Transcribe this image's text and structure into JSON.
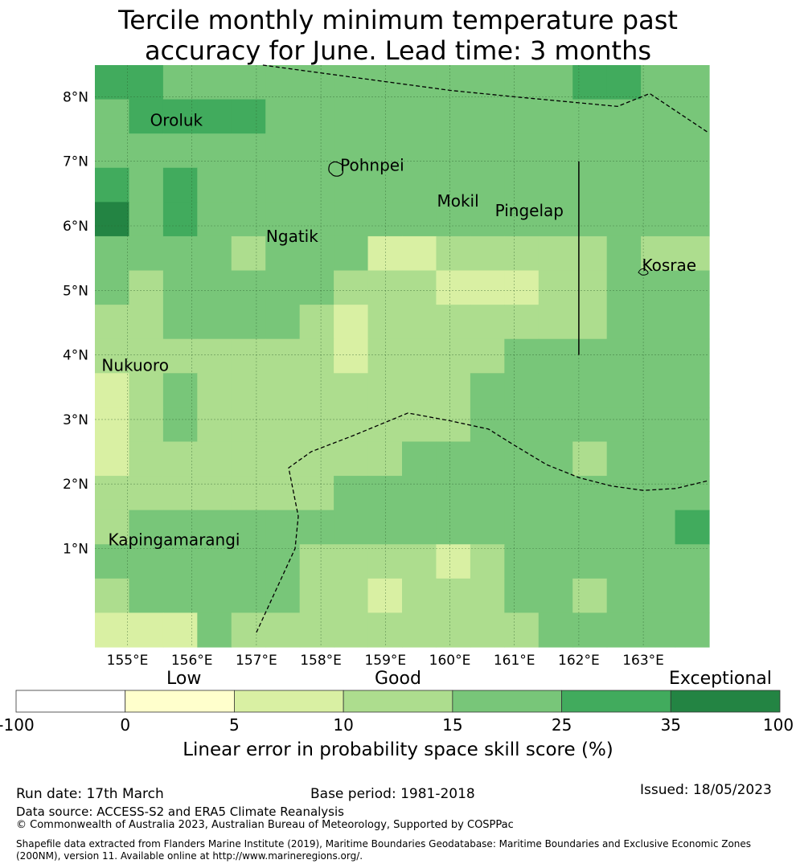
{
  "title_line1": "Tercile monthly minimum temperature past",
  "title_line2": "accuracy for June. Lead time: 3 months",
  "colors": {
    "c_neg": "#ffffff",
    "c0": "#ffffcc",
    "c5": "#d9f0a3",
    "c10": "#addd8e",
    "c15": "#78c679",
    "c25": "#41ab5d",
    "c35": "#238443"
  },
  "chart_data": {
    "type": "heatmap",
    "lon_range": [
      154.5,
      164.0
    ],
    "lat_range": [
      -0.3,
      8.5
    ],
    "cell_lon_size": 0.83,
    "cell_lat_size": 0.55,
    "lon_ticks": [
      "155°E",
      "156°E",
      "157°E",
      "158°E",
      "159°E",
      "160°E",
      "161°E",
      "162°E",
      "163°E"
    ],
    "lon_tick_values": [
      155,
      156,
      157,
      158,
      159,
      160,
      161,
      162,
      163
    ],
    "lat_ticks": [
      "1°N",
      "2°N",
      "3°N",
      "4°N",
      "5°N",
      "6°N",
      "7°N",
      "8°N"
    ],
    "lat_tick_values": [
      1,
      2,
      3,
      4,
      5,
      6,
      7,
      8
    ],
    "grid_rows_top_to_bottom": [
      [
        "c25",
        "c25",
        "c15",
        "c15",
        "c15",
        "c15",
        "c15",
        "c15",
        "c15",
        "c15",
        "c15",
        "c15",
        "c15",
        "c15",
        "c25",
        "c25",
        "c15",
        "c15"
      ],
      [
        "c15",
        "c25",
        "c25",
        "c25",
        "c25",
        "c15",
        "c15",
        "c15",
        "c15",
        "c15",
        "c15",
        "c15",
        "c15",
        "c15",
        "c15",
        "c15",
        "c15",
        "c15"
      ],
      [
        "c15",
        "c15",
        "c15",
        "c15",
        "c15",
        "c15",
        "c15",
        "c15",
        "c15",
        "c15",
        "c15",
        "c15",
        "c15",
        "c15",
        "c15",
        "c15",
        "c15",
        "c15"
      ],
      [
        "c25",
        "c15",
        "c25",
        "c15",
        "c15",
        "c15",
        "c15",
        "c15",
        "c15",
        "c15",
        "c15",
        "c15",
        "c15",
        "c15",
        "c15",
        "c15",
        "c15",
        "c15"
      ],
      [
        "c35",
        "c15",
        "c25",
        "c15",
        "c15",
        "c15",
        "c15",
        "c15",
        "c15",
        "c15",
        "c15",
        "c15",
        "c15",
        "c15",
        "c15",
        "c15",
        "c15",
        "c15"
      ],
      [
        "c15",
        "c15",
        "c15",
        "c15",
        "c10",
        "c15",
        "c15",
        "c15",
        "c5",
        "c5",
        "c10",
        "c10",
        "c10",
        "c10",
        "c10",
        "c15",
        "c10",
        "c10"
      ],
      [
        "c15",
        "c10",
        "c15",
        "c15",
        "c15",
        "c15",
        "c15",
        "c10",
        "c10",
        "c10",
        "c5",
        "c5",
        "c5",
        "c10",
        "c10",
        "c15",
        "c15",
        "c15"
      ],
      [
        "c10",
        "c10",
        "c15",
        "c15",
        "c15",
        "c15",
        "c10",
        "c5",
        "c10",
        "c10",
        "c10",
        "c10",
        "c10",
        "c10",
        "c10",
        "c15",
        "c15",
        "c15"
      ],
      [
        "c10",
        "c10",
        "c10",
        "c10",
        "c10",
        "c10",
        "c10",
        "c5",
        "c10",
        "c10",
        "c10",
        "c10",
        "c15",
        "c15",
        "c15",
        "c15",
        "c15",
        "c15"
      ],
      [
        "c5",
        "c10",
        "c15",
        "c10",
        "c10",
        "c10",
        "c10",
        "c10",
        "c10",
        "c10",
        "c10",
        "c15",
        "c15",
        "c15",
        "c15",
        "c15",
        "c15",
        "c15"
      ],
      [
        "c5",
        "c10",
        "c15",
        "c10",
        "c10",
        "c10",
        "c10",
        "c10",
        "c10",
        "c10",
        "c10",
        "c15",
        "c15",
        "c15",
        "c15",
        "c15",
        "c15",
        "c15"
      ],
      [
        "c5",
        "c10",
        "c10",
        "c10",
        "c10",
        "c10",
        "c10",
        "c10",
        "c10",
        "c15",
        "c15",
        "c15",
        "c15",
        "c15",
        "c10",
        "c15",
        "c15",
        "c15"
      ],
      [
        "c10",
        "c10",
        "c10",
        "c10",
        "c10",
        "c10",
        "c10",
        "c15",
        "c15",
        "c15",
        "c15",
        "c15",
        "c15",
        "c15",
        "c15",
        "c15",
        "c15",
        "c15"
      ],
      [
        "c10",
        "c15",
        "c15",
        "c15",
        "c15",
        "c15",
        "c15",
        "c15",
        "c15",
        "c15",
        "c15",
        "c15",
        "c15",
        "c15",
        "c15",
        "c15",
        "c15",
        "c25"
      ],
      [
        "c15",
        "c15",
        "c15",
        "c15",
        "c15",
        "c15",
        "c10",
        "c10",
        "c10",
        "c10",
        "c5",
        "c10",
        "c15",
        "c15",
        "c15",
        "c15",
        "c15",
        "c15"
      ],
      [
        "c10",
        "c15",
        "c15",
        "c15",
        "c15",
        "c15",
        "c10",
        "c10",
        "c5",
        "c10",
        "c10",
        "c10",
        "c15",
        "c15",
        "c10",
        "c15",
        "c15",
        "c15"
      ],
      [
        "c5",
        "c5",
        "c5",
        "c15",
        "c10",
        "c10",
        "c10",
        "c10",
        "c10",
        "c10",
        "c10",
        "c10",
        "c10",
        "c15",
        "c15",
        "c15",
        "c15",
        "c15"
      ]
    ],
    "places": [
      {
        "name": "Oroluk",
        "lon": 155.35,
        "lat": 7.55
      },
      {
        "name": "Pohnpei",
        "lon": 158.3,
        "lat": 6.85
      },
      {
        "name": "Mokil",
        "lon": 159.8,
        "lat": 6.3
      },
      {
        "name": "Pingelap",
        "lon": 160.7,
        "lat": 6.15
      },
      {
        "name": "Ngatik",
        "lon": 157.15,
        "lat": 5.75
      },
      {
        "name": "Kosrae",
        "lon": 162.98,
        "lat": 5.3
      },
      {
        "name": "Nukuoro",
        "lon": 154.6,
        "lat": 3.75
      },
      {
        "name": "Kapingamarangi",
        "lon": 154.7,
        "lat": 1.05
      }
    ],
    "vertical_line": {
      "lon": 162.0,
      "lat_from": 7.0,
      "lat_to": 4.0
    },
    "eez_boundaries": [
      [
        [
          157.1,
          8.5
        ],
        [
          160.0,
          8.1
        ],
        [
          161.0,
          8.0
        ],
        [
          162.6,
          7.85
        ],
        [
          163.1,
          8.05
        ],
        [
          164.0,
          7.45
        ]
      ],
      [
        [
          157.0,
          -0.3
        ],
        [
          157.6,
          1.0
        ],
        [
          157.65,
          1.5
        ],
        [
          157.5,
          2.25
        ],
        [
          157.85,
          2.5
        ],
        [
          158.5,
          2.75
        ],
        [
          159.35,
          3.1
        ],
        [
          160.0,
          2.98
        ],
        [
          160.6,
          2.85
        ],
        [
          161.0,
          2.6
        ],
        [
          161.5,
          2.3
        ],
        [
          162.0,
          2.1
        ],
        [
          162.5,
          1.97
        ],
        [
          163.0,
          1.9
        ],
        [
          163.5,
          1.93
        ],
        [
          164.0,
          2.05
        ]
      ]
    ],
    "colorbar": {
      "boundaries": [
        "-100",
        "0",
        "5",
        "10",
        "15",
        "25",
        "35",
        "100"
      ],
      "colors": [
        "c_neg",
        "c0",
        "c5",
        "c10",
        "c15",
        "c25",
        "c35"
      ],
      "category_labels": [
        "Low",
        "Good",
        "Exceptional"
      ],
      "label": "Linear error in probability space skill score (%)"
    }
  },
  "footer": {
    "run_date": "Run date: 17th March",
    "base_period": "Base period: 1981-2018",
    "issued": "Issued: 18/05/2023",
    "data_source": "Data source: ACCESS-S2 and ERA5 Climate Reanalysis",
    "copyright": "© Commonwealth of Australia 2023, Australian Bureau of Meteorology, Supported by COSPPac",
    "shapefile_line1": "Shapefile data extracted from Flanders Marine Institute (2019), Maritime Boundaries Geodatabase: Maritime Boundaries and Exclusive Economic Zones",
    "shapefile_line2": "(200NM), version 11. Available online at http://www.marineregions.org/."
  }
}
